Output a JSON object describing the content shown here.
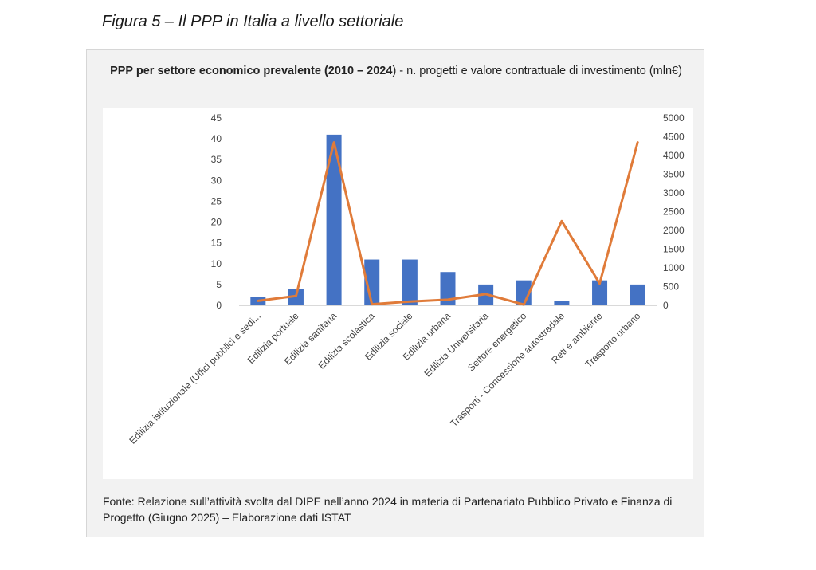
{
  "figure": {
    "caption": "Figura 5 – Il PPP in Italia a livello settoriale"
  },
  "chart_title": {
    "bold": "PPP per settore economico prevalente (2010 – 2024",
    "normal": ")  -  n. progetti e valore contrattuale di investimento (mln€)"
  },
  "source_note": "Fonte: Relazione sull’attività svolta dal DIPE nell’anno 2024 in materia di Partenariato Pubblico Privato e Finanza di Progetto (Giugno 2025) – Elaborazione dati ISTAT",
  "colors": {
    "bars": "#4472c4",
    "line": "#e07b39",
    "gridline": "#d9d9d9"
  },
  "chart_data": {
    "type": "bar",
    "categories": [
      "Edilizia istituzionale (Uffici pubblici e sedi...",
      "Edilizia portuale",
      "Edilizia sanitaria",
      "Edilizia scolastica",
      "Edilizia sociale",
      "Edilizia urbana",
      "Edilizia Universitaria",
      "Settore energetico",
      "Trasporti - Concessione autostradale",
      "Reti e ambiente",
      "Trasporto urbano"
    ],
    "series": [
      {
        "type": "bar",
        "axis": "left",
        "values": [
          2,
          4,
          41,
          11,
          11,
          8,
          5,
          6,
          1,
          6,
          5
        ]
      },
      {
        "type": "line",
        "axis": "right",
        "values": [
          120,
          250,
          4350,
          30,
          100,
          150,
          300,
          20,
          2250,
          580,
          4350
        ]
      }
    ],
    "y_left": {
      "range": [
        0,
        45
      ],
      "ticks": [
        "0",
        "5",
        "10",
        "15",
        "20",
        "25",
        "30",
        "35",
        "40",
        "45"
      ]
    },
    "y_right": {
      "range": [
        0,
        5000
      ],
      "ticks": [
        "0",
        "500",
        "1000",
        "1500",
        "2000",
        "2500",
        "3000",
        "3500",
        "4000",
        "4500",
        "5000"
      ]
    },
    "grid": false,
    "legend": "none"
  }
}
